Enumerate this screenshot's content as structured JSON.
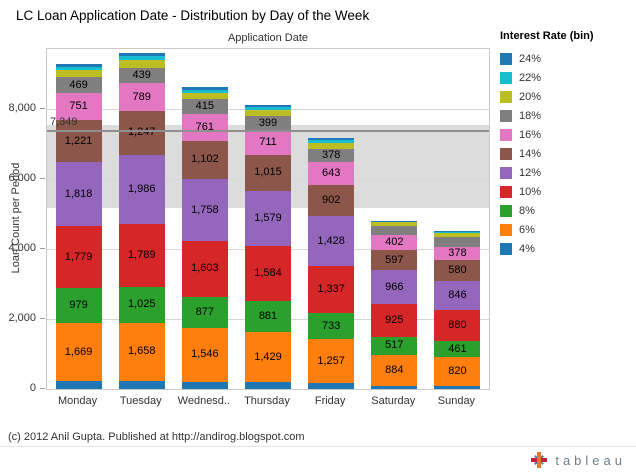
{
  "title": "LC Loan Application Date - Distribution by Day of the Week",
  "footer": "(c) 2012 Anil Gupta. Published at http://andirog.blogspot.com",
  "branding": {
    "logo_text": "tableau"
  },
  "legend": {
    "title": "Interest Rate (bin)",
    "items": [
      {
        "label": "24%",
        "color": "#1F77B4"
      },
      {
        "label": "22%",
        "color": "#17BECF"
      },
      {
        "label": "20%",
        "color": "#BCBD22"
      },
      {
        "label": "18%",
        "color": "#7F7F7F"
      },
      {
        "label": "16%",
        "color": "#E377C2"
      },
      {
        "label": "14%",
        "color": "#8C564B"
      },
      {
        "label": "12%",
        "color": "#9467BD"
      },
      {
        "label": "10%",
        "color": "#D62728"
      },
      {
        "label": "8%",
        "color": "#2CA02C"
      },
      {
        "label": "6%",
        "color": "#FF7F0E"
      },
      {
        "label": "4%",
        "color": "#1F77B4"
      }
    ]
  },
  "chart_data": {
    "type": "bar",
    "stacked": true,
    "column_header": "Application Date",
    "ylabel": "Loan Count per Period",
    "categories": [
      "Monday",
      "Tuesday",
      "Wednesd..",
      "Thursday",
      "Friday",
      "Saturday",
      "Sunday"
    ],
    "ylim": [
      0,
      9700
    ],
    "yticks": [
      {
        "value": 0,
        "label": "0"
      },
      {
        "value": 2000,
        "label": "2,000"
      },
      {
        "value": 4000,
        "label": "4,000"
      },
      {
        "value": 6000,
        "label": "6,000"
      },
      {
        "value": 8000,
        "label": "8,000"
      }
    ],
    "grid": true,
    "legend_position": "right",
    "reference_band": {
      "from": 5150,
      "to": 7520
    },
    "reference_line": {
      "value": 7349,
      "label": "7,349"
    },
    "series": [
      {
        "name": "4%",
        "color": "#1F77B4",
        "values": [
          220,
          230,
          200,
          190,
          170,
          90,
          80
        ],
        "labels": [
          null,
          null,
          null,
          null,
          null,
          null,
          null
        ]
      },
      {
        "name": "6%",
        "color": "#FF7F0E",
        "values": [
          1669,
          1658,
          1546,
          1429,
          1257,
          884,
          820
        ],
        "labels": [
          "1,669",
          "1,658",
          "1,546",
          "1,429",
          "1,257",
          "884",
          "820"
        ]
      },
      {
        "name": "8%",
        "color": "#2CA02C",
        "values": [
          979,
          1025,
          877,
          881,
          733,
          517,
          461
        ],
        "labels": [
          "979",
          "1,025",
          "877",
          "881",
          "733",
          "517",
          "461"
        ]
      },
      {
        "name": "10%",
        "color": "#D62728",
        "values": [
          1779,
          1789,
          1603,
          1584,
          1337,
          925,
          880
        ],
        "labels": [
          "1,779",
          "1,789",
          "1,603",
          "1,584",
          "1,337",
          "925",
          "880"
        ]
      },
      {
        "name": "12%",
        "color": "#9467BD",
        "values": [
          1818,
          1986,
          1758,
          1579,
          1428,
          966,
          846
        ],
        "labels": [
          "1,818",
          "1,986",
          "1,758",
          "1,579",
          "1,428",
          "966",
          "846"
        ]
      },
      {
        "name": "14%",
        "color": "#8C564B",
        "values": [
          1221,
          1247,
          1102,
          1015,
          902,
          597,
          580
        ],
        "labels": [
          "1,221",
          "1,247",
          "1,102",
          "1,015",
          "902",
          "597",
          "580"
        ]
      },
      {
        "name": "16%",
        "color": "#E377C2",
        "values": [
          751,
          789,
          761,
          711,
          643,
          402,
          378
        ],
        "labels": [
          "751",
          "789",
          "761",
          "711",
          "643",
          "402",
          "378"
        ]
      },
      {
        "name": "18%",
        "color": "#7F7F7F",
        "values": [
          469,
          439,
          415,
          399,
          378,
          280,
          300
        ],
        "labels": [
          "469",
          "439",
          "415",
          "399",
          "378",
          null,
          null
        ]
      },
      {
        "name": "20%",
        "color": "#BCBD22",
        "values": [
          200,
          230,
          190,
          180,
          180,
          90,
          110
        ],
        "labels": [
          null,
          null,
          null,
          null,
          null,
          null,
          null
        ]
      },
      {
        "name": "22%",
        "color": "#17BECF",
        "values": [
          80,
          100,
          90,
          80,
          80,
          30,
          35
        ],
        "labels": [
          null,
          null,
          null,
          null,
          null,
          null,
          null
        ]
      },
      {
        "name": "24%",
        "color": "#1F77B4",
        "values": [
          90,
          90,
          70,
          60,
          50,
          15,
          20
        ],
        "labels": [
          null,
          null,
          null,
          null,
          null,
          null,
          null
        ]
      }
    ]
  }
}
